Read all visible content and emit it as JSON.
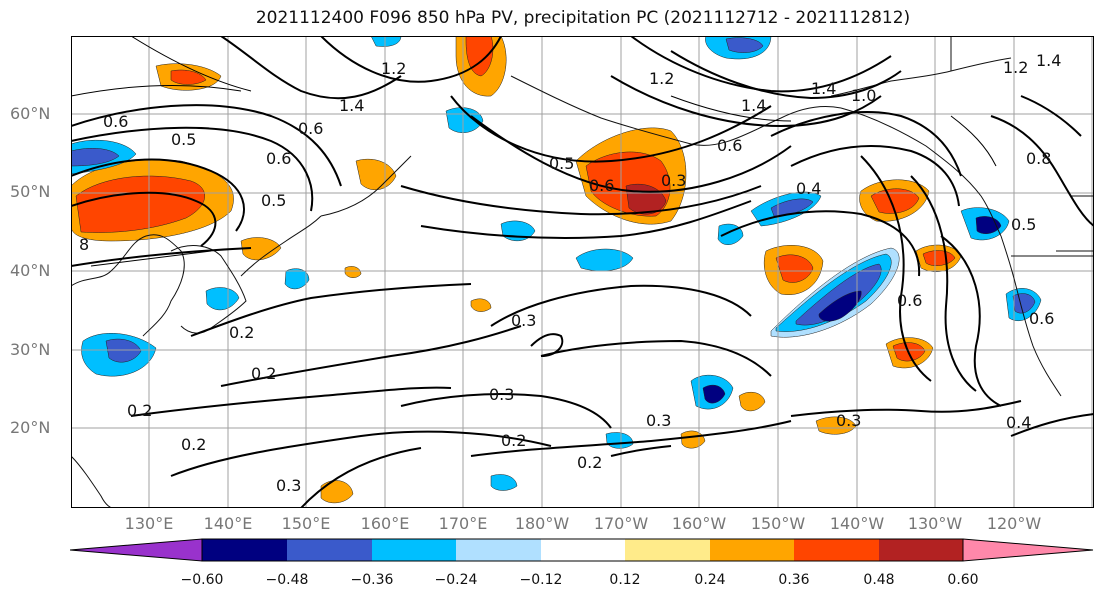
{
  "title": "2021112400 F096 850 hPa PV, precipitation PC (2021112712 - 2021112812)",
  "lat_labels": [
    "60°N",
    "50°N",
    "40°N",
    "30°N",
    "20°N"
  ],
  "lon_labels": [
    "130°E",
    "140°E",
    "150°E",
    "160°E",
    "170°E",
    "180°W",
    "170°W",
    "160°W",
    "150°W",
    "140°W",
    "130°W",
    "120°W"
  ],
  "colorbar": {
    "ticks": [
      "−0.60",
      "−0.48",
      "−0.36",
      "−0.24",
      "−0.12",
      "0.12",
      "0.24",
      "0.36",
      "0.48",
      "0.60"
    ],
    "colors": [
      "#9932cc",
      "#000080",
      "#3a5acb",
      "#00bfff",
      "#b0e0ff",
      "#ffffff",
      "#ffeb8a",
      "#ffa500",
      "#ff4500",
      "#b22222",
      "#ff88aa"
    ]
  },
  "contour_labels": [
    "0.6",
    "0.5",
    "1.2",
    "1.4",
    "0.6",
    "0.5",
    "0.6",
    "0.5",
    "0.6",
    "0.3",
    "1.2",
    "1.4",
    "1.4",
    "1.0",
    "1.2",
    "1.4",
    "0.6",
    "0.4",
    "0.8",
    "0.5",
    "0.6",
    "0.3",
    "0.2",
    "0.2",
    "0.2",
    "0.2",
    "0.3",
    "0.3",
    "0.3",
    "0.2",
    "0.3",
    "0.4",
    "0.6",
    "0.2",
    "8"
  ]
}
